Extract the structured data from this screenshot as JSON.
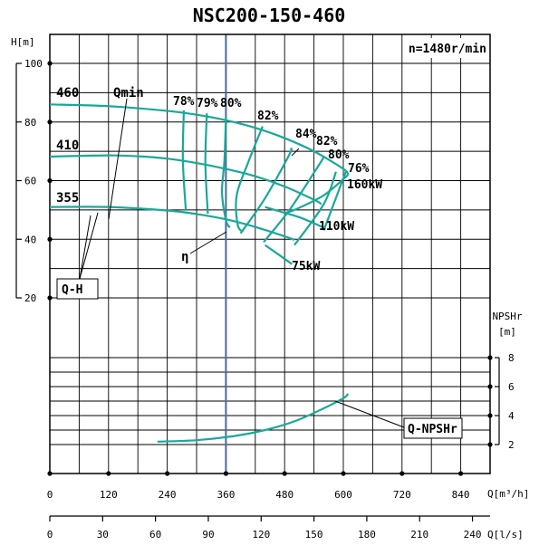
{
  "chart_data": {
    "type": "line",
    "title": "NSC200-150-460",
    "speed_note": "n=1480r/min",
    "x_axis": {
      "unit_flow_m3h": "Q[m³/h]",
      "range_m3h": [
        0,
        900
      ],
      "ticks_m3h": [
        "0",
        "120",
        "240",
        "360",
        "480",
        "600",
        "720",
        "840"
      ],
      "unit_flow_ls": "Q[l/s]",
      "ticks_ls": [
        "0",
        "30",
        "60",
        "90",
        "120",
        "150",
        "180",
        "210",
        "240"
      ]
    },
    "head_axis": {
      "label": "H[m]",
      "range": [
        20,
        100
      ],
      "ticks": [
        "100",
        "80",
        "60",
        "40",
        "20"
      ]
    },
    "npsh_axis": {
      "label_line1": "NPSHr",
      "label_line2": "[m]",
      "range": [
        2,
        8
      ],
      "ticks": [
        "8",
        "6",
        "4",
        "2"
      ]
    },
    "duty_flow_m3h": 360,
    "head_curves": [
      {
        "name": "460",
        "x": [
          0,
          120,
          240,
          300,
          360,
          420,
          480,
          540,
          600,
          610
        ],
        "y": [
          86,
          85.4,
          83.8,
          82.5,
          80.6,
          78,
          74.5,
          70,
          64,
          62
        ]
      },
      {
        "name": "410",
        "x": [
          0,
          120,
          180,
          240,
          300,
          360,
          420,
          480,
          540,
          555
        ],
        "y": [
          68.2,
          68.6,
          68.3,
          67.5,
          66,
          64,
          61.5,
          58,
          53.5,
          52
        ]
      },
      {
        "name": "355",
        "x": [
          0,
          120,
          240,
          300,
          360,
          420,
          480,
          500
        ],
        "y": [
          51,
          51,
          49.8,
          48.6,
          46.8,
          44.2,
          41,
          39.8
        ]
      }
    ],
    "qmin_label": "Qmin",
    "efficiency_curves": [
      {
        "name": "78%",
        "x": [
          274,
          272,
          278
        ],
        "y": [
          84,
          67,
          50
        ]
      },
      {
        "name": "79%",
        "x": [
          321,
          318,
          323
        ],
        "y": [
          83,
          66,
          48.7
        ]
      },
      {
        "name": "80%",
        "x": [
          360,
          357,
          352,
          360,
          368
        ],
        "y": [
          82,
          67,
          56,
          46.5,
          44
        ]
      },
      {
        "name": "82%",
        "x": [
          435,
          405,
          382,
          384,
          395
        ],
        "y": [
          78.5,
          66,
          55,
          45,
          42.5
        ]
      },
      {
        "name": "84%",
        "x": [
          390,
          440,
          490,
          492
        ],
        "y": [
          42,
          54,
          69,
          71
        ]
      },
      {
        "name": "82%",
        "x": [
          437,
          490,
          545,
          560
        ],
        "y": [
          39,
          50,
          64,
          68
        ]
      },
      {
        "name": "80%",
        "x": [
          500,
          560,
          585
        ],
        "y": [
          38,
          52,
          63
        ]
      },
      {
        "name": "76%",
        "x": [
          560,
          605
        ],
        "y": [
          43,
          63
        ]
      }
    ],
    "efficiency_label": "η",
    "power_curves": [
      {
        "name": "160kW",
        "x": [
          610,
          560,
          500,
          480
        ],
        "y": [
          62,
          55,
          50,
          49
        ]
      },
      {
        "name": "110kW",
        "x": [
          560,
          510,
          470,
          440
        ],
        "y": [
          44,
          47.5,
          49.5,
          51
        ]
      },
      {
        "name": "75kW",
        "x": [
          495,
          470,
          440
        ],
        "y": [
          31.5,
          34.5,
          38
        ]
      }
    ],
    "head_series_label": "Q-H",
    "npsh_curve": {
      "name": "Q-NPSHr",
      "x": [
        220,
        300,
        380,
        440,
        500,
        560,
        600,
        610
      ],
      "y": [
        2.2,
        2.3,
        2.6,
        3.0,
        3.6,
        4.5,
        5.2,
        5.5
      ]
    }
  }
}
